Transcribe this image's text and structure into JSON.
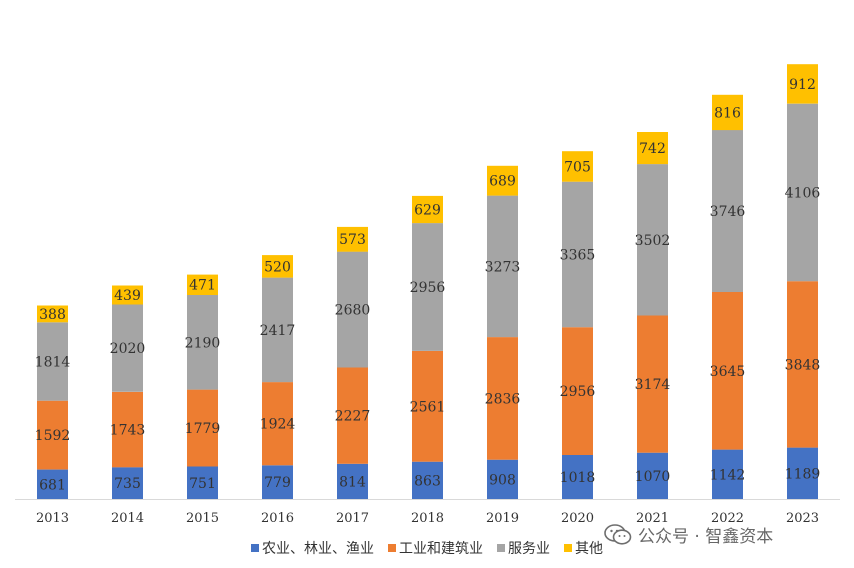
{
  "chart_data": {
    "type": "bar",
    "stacked": true,
    "categories": [
      "2013",
      "2014",
      "2015",
      "2016",
      "2017",
      "2018",
      "2019",
      "2020",
      "2021",
      "2022",
      "2023"
    ],
    "series": [
      {
        "name": "农业、林业、渔业",
        "color": "#4472C4",
        "values": [
          681,
          735,
          751,
          779,
          814,
          863,
          908,
          1018,
          1070,
          1142,
          1189
        ]
      },
      {
        "name": "工业和建筑业",
        "color": "#ED7D31",
        "values": [
          1592,
          1743,
          1779,
          1924,
          2227,
          2561,
          2836,
          2956,
          3174,
          3645,
          3848
        ]
      },
      {
        "name": "服务业",
        "color": "#A5A5A5",
        "values": [
          1814,
          2020,
          2190,
          2417,
          2680,
          2956,
          3273,
          3365,
          3502,
          3746,
          4106
        ]
      },
      {
        "name": "其他",
        "color": "#FFC000",
        "values": [
          388,
          439,
          471,
          520,
          573,
          629,
          689,
          705,
          742,
          816,
          912
        ]
      }
    ],
    "ylim": [
      0,
      10500
    ],
    "grid": false,
    "legend_position": "bottom",
    "title": "",
    "xlabel": "",
    "ylabel": ""
  },
  "watermark": {
    "text": "公众号 · 智鑫资本",
    "icon": "wechat-icon"
  }
}
